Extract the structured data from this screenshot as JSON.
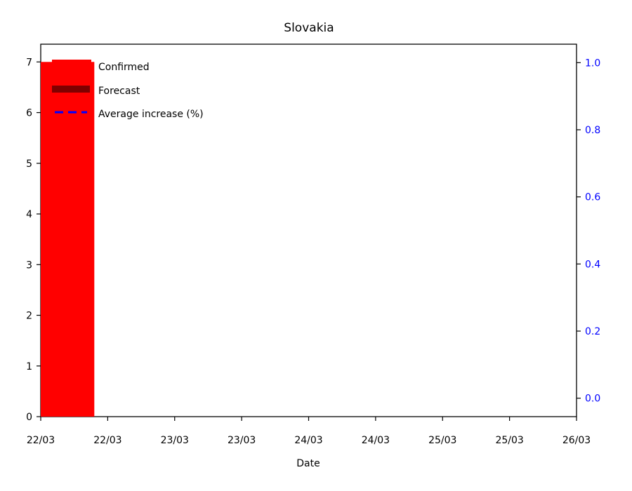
{
  "chart_data": {
    "type": "bar",
    "title": "Slovakia",
    "xlabel": "Date",
    "ylabel": "",
    "x_tick_labels": [
      "22/03",
      "22/03",
      "23/03",
      "23/03",
      "24/03",
      "24/03",
      "25/03",
      "25/03",
      "26/03"
    ],
    "y_ticks": [
      0,
      1,
      2,
      3,
      4,
      5,
      6,
      7
    ],
    "ylim": [
      0,
      7.35
    ],
    "y2_ticks": [
      "0.0",
      "0.2",
      "0.4",
      "0.6",
      "0.8",
      "1.0"
    ],
    "y2lim": [
      -0.055,
      1.055
    ],
    "grid": false,
    "legend_position": "top-left",
    "series": [
      {
        "name": "Confirmed",
        "kind": "bar",
        "color": "#ff0000",
        "points": [
          {
            "x": "22/03",
            "value": 7
          }
        ]
      },
      {
        "name": "Forecast",
        "kind": "bar",
        "color": "#7f0000",
        "points": []
      },
      {
        "name": "Average increase (%)",
        "kind": "line",
        "axis": "right",
        "style": "dashed",
        "color": "#0000ff",
        "points": []
      }
    ],
    "right_axis_color": "#0000ff"
  }
}
